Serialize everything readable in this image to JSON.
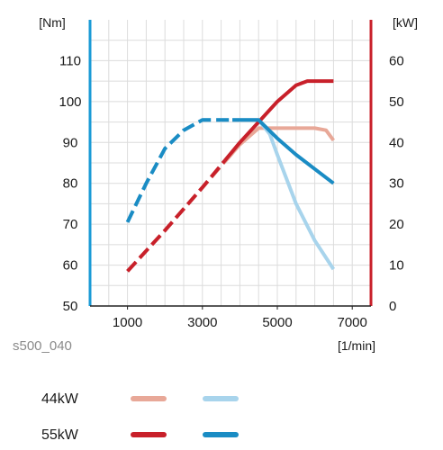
{
  "chart_data": {
    "type": "line",
    "figure_code": "s500_040",
    "x_unit": "[1/min]",
    "y_left_unit": "[Nm]",
    "y_right_unit": "[kW]",
    "xlim": [
      0,
      7500
    ],
    "ylim_left": [
      50,
      120
    ],
    "ylim_right": [
      0,
      70
    ],
    "x_ticks": [
      1000,
      3000,
      5000,
      7000
    ],
    "y_left_ticks": [
      50,
      60,
      70,
      80,
      90,
      100,
      110
    ],
    "y_right_ticks": [
      0,
      10,
      20,
      30,
      40,
      50,
      60
    ],
    "grid": true,
    "legend": [
      {
        "label": "44kW",
        "power_color": "#e8a898",
        "torque_color": "#a8d4ec"
      },
      {
        "label": "55kW",
        "power_color": "#c8202a",
        "torque_color": "#1a8cc4"
      }
    ],
    "series": [
      {
        "variant": "44kW",
        "quantity": "power",
        "axis": "right",
        "color": "#e8a898",
        "dash_until": 3600,
        "x": [
          1000,
          2000,
          3000,
          4000,
          4500,
          5000,
          5500,
          6000,
          6300,
          6500
        ],
        "y": [
          8.5,
          18.5,
          29,
          39.5,
          43.5,
          43.5,
          43.5,
          43.5,
          43,
          40.5
        ]
      },
      {
        "variant": "44kW",
        "quantity": "torque",
        "axis": "left",
        "color": "#a8d4ec",
        "dash_until": 3800,
        "x": [
          1000,
          1500,
          2000,
          2500,
          3000,
          3500,
          4000,
          4500,
          4800,
          5000,
          5500,
          6000,
          6500
        ],
        "y": [
          70.5,
          80,
          88.5,
          93,
          95.5,
          95.5,
          95.5,
          95.5,
          92,
          87,
          75,
          66,
          59
        ]
      },
      {
        "variant": "55kW",
        "quantity": "power",
        "axis": "right",
        "color": "#c8202a",
        "dash_until": 3600,
        "x": [
          1000,
          2000,
          3000,
          4000,
          4500,
          5000,
          5500,
          5800,
          6000,
          6500
        ],
        "y": [
          8.5,
          18.5,
          29,
          40,
          45,
          50,
          54,
          55,
          55,
          55
        ]
      },
      {
        "variant": "55kW",
        "quantity": "torque",
        "axis": "left",
        "color": "#1a8cc4",
        "dash_until": 3800,
        "x": [
          1000,
          1500,
          2000,
          2500,
          3000,
          3500,
          4000,
          4500,
          5000,
          5500,
          6000,
          6500
        ],
        "y": [
          70.5,
          80,
          88.5,
          93,
          95.5,
          95.5,
          95.5,
          95.5,
          91,
          87,
          83.5,
          80
        ]
      }
    ]
  }
}
